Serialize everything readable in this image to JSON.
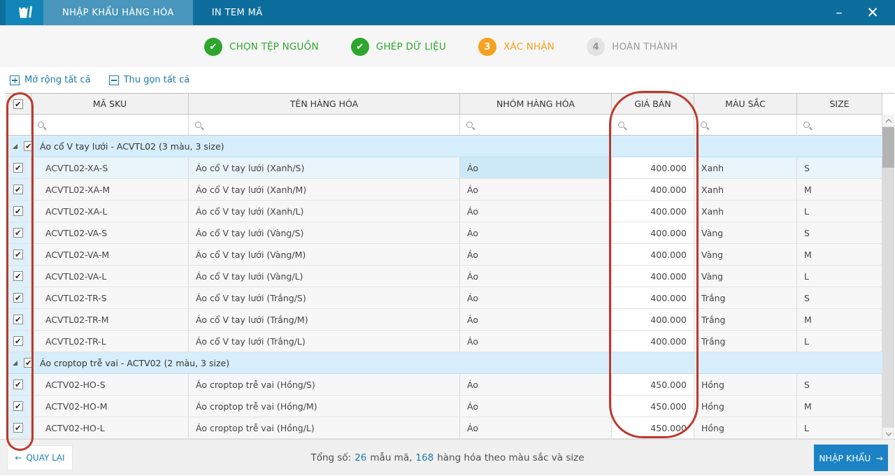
{
  "titlebar": {
    "tabs": [
      {
        "label": "NHẬP KHẨU HÀNG HÓA",
        "active": true
      },
      {
        "label": "IN TEM MÃ",
        "active": false
      }
    ],
    "minimize_label": "–",
    "close_label": "✕"
  },
  "steps": [
    {
      "label": "CHỌN TỆP NGUỒN",
      "state": "done",
      "number": ""
    },
    {
      "label": "GHÉP DỮ LIỆU",
      "state": "done",
      "number": ""
    },
    {
      "label": "XÁC NHẬN",
      "state": "current",
      "number": "3"
    },
    {
      "label": "HOÀN THÀNH",
      "state": "pending",
      "number": "4"
    }
  ],
  "toolbar": {
    "expand_all": "Mở rộng tất cả",
    "collapse_all": "Thu gọn tất cả"
  },
  "table": {
    "columns": [
      "MÃ SKU",
      "TÊN HÀNG HÓA",
      "NHÓM HÀNG HÓA",
      "GIÁ BÁN",
      "MÀU SẮC",
      "SIZE"
    ],
    "header_checkbox_checked": true,
    "rows": [
      {
        "type": "group",
        "checked": true,
        "label": "Áo cổ V tay lưới - ACVTL02 (3 màu, 3 size)"
      },
      {
        "type": "item",
        "checked": true,
        "selected": true,
        "sku": "ACVTL02-XA-S",
        "name": "Áo cổ V tay lưới (Xanh/S)",
        "group": "Áo",
        "price": "400.000",
        "color": "Xanh",
        "size": "S"
      },
      {
        "type": "item",
        "checked": true,
        "selected": false,
        "sku": "ACVTL02-XA-M",
        "name": "Áo cổ V tay lưới (Xanh/M)",
        "group": "Áo",
        "price": "400.000",
        "color": "Xanh",
        "size": "M"
      },
      {
        "type": "item",
        "checked": true,
        "selected": false,
        "sku": "ACVTL02-XA-L",
        "name": "Áo cổ V tay lưới (Xanh/L)",
        "group": "Áo",
        "price": "400.000",
        "color": "Xanh",
        "size": "L"
      },
      {
        "type": "item",
        "checked": true,
        "selected": false,
        "sku": "ACVTL02-VA-S",
        "name": "Áo cổ V tay lưới (Vàng/S)",
        "group": "Áo",
        "price": "400.000",
        "color": "Vàng",
        "size": "S"
      },
      {
        "type": "item",
        "checked": true,
        "selected": false,
        "sku": "ACVTL02-VA-M",
        "name": "Áo cổ V tay lưới (Vàng/M)",
        "group": "Áo",
        "price": "400.000",
        "color": "Vàng",
        "size": "M"
      },
      {
        "type": "item",
        "checked": true,
        "selected": false,
        "sku": "ACVTL02-VA-L",
        "name": "Áo cổ V tay lưới (Vàng/L)",
        "group": "Áo",
        "price": "400.000",
        "color": "Vàng",
        "size": "L"
      },
      {
        "type": "item",
        "checked": true,
        "selected": false,
        "sku": "ACVTL02-TR-S",
        "name": "Áo cổ V tay lưới (Trắng/S)",
        "group": "Áo",
        "price": "400.000",
        "color": "Trắng",
        "size": "S"
      },
      {
        "type": "item",
        "checked": true,
        "selected": false,
        "sku": "ACVTL02-TR-M",
        "name": "Áo cổ V tay lưới (Trắng/M)",
        "group": "Áo",
        "price": "400.000",
        "color": "Trắng",
        "size": "M"
      },
      {
        "type": "item",
        "checked": true,
        "selected": false,
        "sku": "ACVTL02-TR-L",
        "name": "Áo cổ V tay lưới (Trắng/L)",
        "group": "Áo",
        "price": "400.000",
        "color": "Trắng",
        "size": "L"
      },
      {
        "type": "group",
        "checked": true,
        "label": "Áo croptop trễ vai - ACTV02 (2 màu, 3 size)"
      },
      {
        "type": "item",
        "checked": true,
        "selected": false,
        "sku": "ACTV02-HO-S",
        "name": "Áo croptop trễ vai (Hồng/S)",
        "group": "Áo",
        "price": "450.000",
        "color": "Hồng",
        "size": "S"
      },
      {
        "type": "item",
        "checked": true,
        "selected": false,
        "sku": "ACTV02-HO-M",
        "name": "Áo croptop trễ vai (Hồng/M)",
        "group": "Áo",
        "price": "450.000",
        "color": "Hồng",
        "size": "M"
      },
      {
        "type": "item",
        "checked": true,
        "selected": false,
        "sku": "ACTV02-HO-L",
        "name": "Áo croptop trễ vai (Hồng/L)",
        "group": "Áo",
        "price": "450.000",
        "color": "Hồng",
        "size": "L"
      }
    ]
  },
  "footer": {
    "back_label": "QUAY LẠI",
    "back_arrow": "←",
    "summary_prefix": "Tổng số:",
    "summary_count1": "26",
    "summary_mid": "mẫu mã,",
    "summary_count2": "168",
    "summary_suffix": "hàng hóa theo màu sắc và size",
    "import_label": "NHẬP KHẨU",
    "import_arrow": "→"
  },
  "colors": {
    "titlebar": "#0d6e9e",
    "active_tab": "#4a96bc",
    "logo_tile": "#1286b8",
    "step_done": "#2ea52d",
    "step_current": "#f6a21d",
    "step_pending": "#e3e3e3",
    "link": "#1d7ca3",
    "group_row": "#d6eefb",
    "checkbox_column": "#def0fa",
    "annotation_red": "#bb3a2d",
    "import_button": "#1b82c5"
  }
}
